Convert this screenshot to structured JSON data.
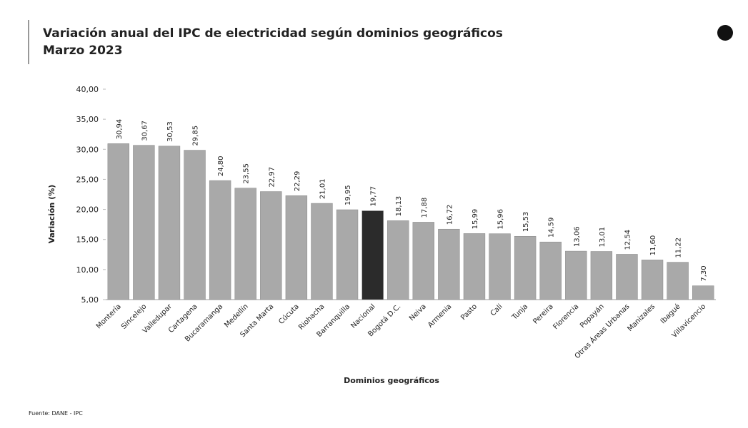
{
  "chart_data": {
    "type": "bar",
    "title": "Variación anual del IPC de electricidad según dominios geográficos",
    "subtitle": "Marzo 2023",
    "y_label": "Variación (%)",
    "x_label": "Dominios geográficos",
    "source": "Fuente: DANE - IPC",
    "categories": [
      "Montería",
      "Sincelejo",
      "Valledupar",
      "Cartagena",
      "Bucaramanga",
      "Medellín",
      "Santa Marta",
      "Cúcuta",
      "Riohacha",
      "Barranquilla",
      "Nacional",
      "Bogotá D.C.",
      "Neiva",
      "Armenia",
      "Pasto",
      "Cali",
      "Tunja",
      "Pereira",
      "Florencia",
      "Popayán",
      "Otras Áreas Urbanas",
      "Manizales",
      "Ibagué",
      "Villavicencio"
    ],
    "values": [
      30.94,
      30.67,
      30.53,
      29.85,
      24.8,
      23.55,
      22.97,
      22.29,
      21.01,
      19.95,
      19.77,
      18.13,
      17.88,
      16.72,
      15.99,
      15.96,
      15.53,
      14.59,
      13.06,
      13.01,
      12.54,
      11.6,
      11.22,
      7.3
    ],
    "value_labels": [
      "30,94",
      "30,67",
      "30,53",
      "29,85",
      "24,80",
      "23,55",
      "22,97",
      "22,29",
      "21,01",
      "19,95",
      "19,77",
      "18,13",
      "17,88",
      "16,72",
      "15,99",
      "15,96",
      "15,53",
      "14,59",
      "13,06",
      "13,01",
      "12,54",
      "11,60",
      "11,22",
      "7,30"
    ],
    "colors": [
      "#a9a9a9",
      "#a9a9a9",
      "#a9a9a9",
      "#a9a9a9",
      "#a9a9a9",
      "#a9a9a9",
      "#a9a9a9",
      "#a9a9a9",
      "#a9a9a9",
      "#a9a9a9",
      "#2b2b2b",
      "#a9a9a9",
      "#a9a9a9",
      "#a9a9a9",
      "#a9a9a9",
      "#a9a9a9",
      "#a9a9a9",
      "#a9a9a9",
      "#a9a9a9",
      "#a9a9a9",
      "#a9a9a9",
      "#a9a9a9",
      "#a9a9a9",
      "#a9a9a9"
    ],
    "ylim": [
      5,
      40
    ],
    "yticks": [
      {
        "value": 5,
        "label": "5,00"
      },
      {
        "value": 10,
        "label": "10,00"
      },
      {
        "value": 15,
        "label": "15,00"
      },
      {
        "value": 20,
        "label": "20,00"
      },
      {
        "value": 25,
        "label": "25,00"
      },
      {
        "value": 30,
        "label": "30,00"
      },
      {
        "value": 35,
        "label": "35,00"
      },
      {
        "value": 40,
        "label": "40,00"
      }
    ],
    "grid": false
  }
}
